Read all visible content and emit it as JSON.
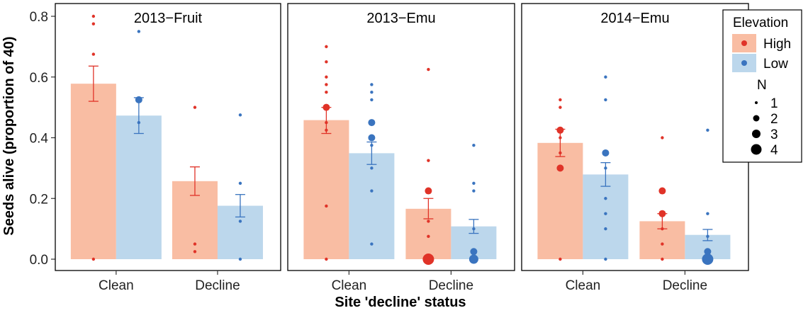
{
  "chart_data": {
    "type": "bar",
    "xlabel": "Site 'decline' status",
    "ylabel": "Seeds alive (proportion of 40)",
    "ylim": [
      0,
      0.82
    ],
    "yticks": [
      "0.0",
      "0.2",
      "0.4",
      "0.6",
      "0.8"
    ],
    "categories": [
      "Clean",
      "Decline"
    ],
    "colors": {
      "High": {
        "bar": "#f9bda3",
        "point": "#e03328"
      },
      "Low": {
        "bar": "#bcd7ec",
        "point": "#3a74bf"
      }
    },
    "panels": [
      {
        "title": "2013−Fruit",
        "series": [
          {
            "name": "High",
            "means": [
              0.578,
              0.257
            ],
            "se_low": [
              0.52,
              0.21
            ],
            "se_high": [
              0.636,
              0.304
            ],
            "points": [
              {
                "cat": "Clean",
                "y": 0.8,
                "n": 1
              },
              {
                "cat": "Clean",
                "y": 0.775,
                "n": 1
              },
              {
                "cat": "Clean",
                "y": 0.675,
                "n": 1
              },
              {
                "cat": "Clean",
                "y": 0.0,
                "n": 1
              },
              {
                "cat": "Decline",
                "y": 0.5,
                "n": 1
              },
              {
                "cat": "Decline",
                "y": 0.05,
                "n": 1
              },
              {
                "cat": "Decline",
                "y": 0.025,
                "n": 1
              }
            ]
          },
          {
            "name": "Low",
            "means": [
              0.473,
              0.176
            ],
            "se_low": [
              0.414,
              0.139
            ],
            "se_high": [
              0.532,
              0.213
            ],
            "points": [
              {
                "cat": "Clean",
                "y": 0.75,
                "n": 1
              },
              {
                "cat": "Clean",
                "y": 0.525,
                "n": 2
              },
              {
                "cat": "Clean",
                "y": 0.45,
                "n": 1
              },
              {
                "cat": "Decline",
                "y": 0.475,
                "n": 1
              },
              {
                "cat": "Decline",
                "y": 0.25,
                "n": 1
              },
              {
                "cat": "Decline",
                "y": 0.125,
                "n": 1
              },
              {
                "cat": "Decline",
                "y": 0.0,
                "n": 1
              }
            ]
          }
        ]
      },
      {
        "title": "2013−Emu",
        "series": [
          {
            "name": "High",
            "means": [
              0.458,
              0.166
            ],
            "se_low": [
              0.414,
              0.133
            ],
            "se_high": [
              0.5,
              0.2
            ],
            "points": [
              {
                "cat": "Clean",
                "y": 0.7,
                "n": 1
              },
              {
                "cat": "Clean",
                "y": 0.65,
                "n": 1
              },
              {
                "cat": "Clean",
                "y": 0.6,
                "n": 1
              },
              {
                "cat": "Clean",
                "y": 0.575,
                "n": 1
              },
              {
                "cat": "Clean",
                "y": 0.55,
                "n": 1
              },
              {
                "cat": "Clean",
                "y": 0.5,
                "n": 2
              },
              {
                "cat": "Clean",
                "y": 0.45,
                "n": 1
              },
              {
                "cat": "Clean",
                "y": 0.425,
                "n": 1
              },
              {
                "cat": "Clean",
                "y": 0.175,
                "n": 1
              },
              {
                "cat": "Clean",
                "y": 0.0,
                "n": 1
              },
              {
                "cat": "Decline",
                "y": 0.625,
                "n": 1
              },
              {
                "cat": "Decline",
                "y": 0.325,
                "n": 1
              },
              {
                "cat": "Decline",
                "y": 0.225,
                "n": 2
              },
              {
                "cat": "Decline",
                "y": 0.125,
                "n": 1
              },
              {
                "cat": "Decline",
                "y": 0.075,
                "n": 1
              },
              {
                "cat": "Decline",
                "y": 0.0,
                "n": 4
              }
            ]
          },
          {
            "name": "Low",
            "means": [
              0.349,
              0.108
            ],
            "se_low": [
              0.312,
              0.085
            ],
            "se_high": [
              0.386,
              0.131
            ],
            "points": [
              {
                "cat": "Clean",
                "y": 0.575,
                "n": 1
              },
              {
                "cat": "Clean",
                "y": 0.55,
                "n": 1
              },
              {
                "cat": "Clean",
                "y": 0.525,
                "n": 1
              },
              {
                "cat": "Clean",
                "y": 0.45,
                "n": 2
              },
              {
                "cat": "Clean",
                "y": 0.4,
                "n": 2
              },
              {
                "cat": "Clean",
                "y": 0.375,
                "n": 1
              },
              {
                "cat": "Clean",
                "y": 0.3,
                "n": 1
              },
              {
                "cat": "Clean",
                "y": 0.225,
                "n": 1
              },
              {
                "cat": "Clean",
                "y": 0.05,
                "n": 1
              },
              {
                "cat": "Decline",
                "y": 0.375,
                "n": 1
              },
              {
                "cat": "Decline",
                "y": 0.25,
                "n": 1
              },
              {
                "cat": "Decline",
                "y": 0.225,
                "n": 1
              },
              {
                "cat": "Decline",
                "y": 0.1,
                "n": 1
              },
              {
                "cat": "Decline",
                "y": 0.025,
                "n": 2
              },
              {
                "cat": "Decline",
                "y": 0.0,
                "n": 3
              }
            ]
          }
        ]
      },
      {
        "title": "2014−Emu",
        "series": [
          {
            "name": "High",
            "means": [
              0.383,
              0.125
            ],
            "se_low": [
              0.338,
              0.1
            ],
            "se_high": [
              0.428,
              0.15
            ],
            "points": [
              {
                "cat": "Clean",
                "y": 0.525,
                "n": 1
              },
              {
                "cat": "Clean",
                "y": 0.5,
                "n": 1
              },
              {
                "cat": "Clean",
                "y": 0.425,
                "n": 2
              },
              {
                "cat": "Clean",
                "y": 0.4,
                "n": 1
              },
              {
                "cat": "Clean",
                "y": 0.35,
                "n": 1
              },
              {
                "cat": "Clean",
                "y": 0.3,
                "n": 2
              },
              {
                "cat": "Clean",
                "y": 0.0,
                "n": 1
              },
              {
                "cat": "Decline",
                "y": 0.4,
                "n": 1
              },
              {
                "cat": "Decline",
                "y": 0.225,
                "n": 2
              },
              {
                "cat": "Decline",
                "y": 0.15,
                "n": 2
              },
              {
                "cat": "Decline",
                "y": 0.1,
                "n": 1
              },
              {
                "cat": "Decline",
                "y": 0.05,
                "n": 1
              },
              {
                "cat": "Decline",
                "y": 0.0,
                "n": 1
              }
            ]
          },
          {
            "name": "Low",
            "means": [
              0.279,
              0.08
            ],
            "se_low": [
              0.24,
              0.061
            ],
            "se_high": [
              0.318,
              0.098
            ],
            "points": [
              {
                "cat": "Clean",
                "y": 0.6,
                "n": 1
              },
              {
                "cat": "Clean",
                "y": 0.525,
                "n": 1
              },
              {
                "cat": "Clean",
                "y": 0.35,
                "n": 2
              },
              {
                "cat": "Clean",
                "y": 0.3,
                "n": 1
              },
              {
                "cat": "Clean",
                "y": 0.2,
                "n": 1
              },
              {
                "cat": "Clean",
                "y": 0.15,
                "n": 1
              },
              {
                "cat": "Clean",
                "y": 0.1,
                "n": 1
              },
              {
                "cat": "Clean",
                "y": 0.0,
                "n": 1
              },
              {
                "cat": "Decline",
                "y": 0.425,
                "n": 1
              },
              {
                "cat": "Decline",
                "y": 0.15,
                "n": 1
              },
              {
                "cat": "Decline",
                "y": 0.075,
                "n": 1
              },
              {
                "cat": "Decline",
                "y": 0.025,
                "n": 2
              },
              {
                "cat": "Decline",
                "y": 0.0,
                "n": 4
              }
            ]
          }
        ]
      }
    ],
    "legend": {
      "position": "right",
      "fill_title": "Elevation",
      "fill_items": [
        "High",
        "Low"
      ],
      "size_title": "N",
      "size_items": [
        "1",
        "2",
        "3",
        "4"
      ]
    }
  }
}
